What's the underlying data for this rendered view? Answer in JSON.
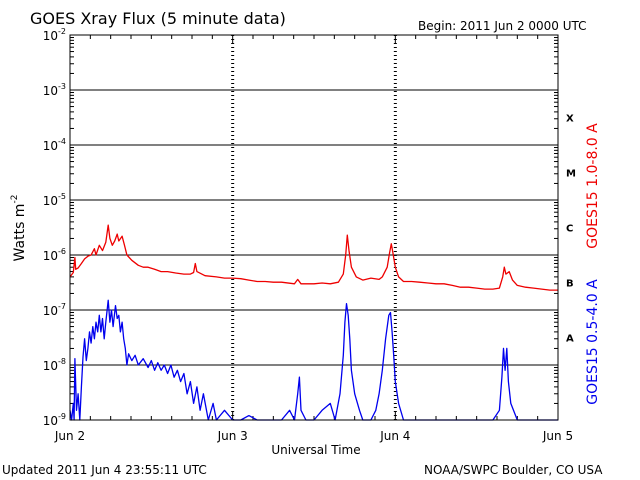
{
  "header": {
    "title": "GOES Xray Flux (5 minute data)",
    "begin": "Begin:  2011 Jun 2 0000 UTC"
  },
  "footer": {
    "updated": "Updated 2011 Jun  4 23:55:11 UTC",
    "credit": "NOAA/SWPC Boulder, CO USA"
  },
  "colors": {
    "long": "#ee0000",
    "short": "#0000ee",
    "grid": "#000000"
  },
  "chart_data": {
    "type": "line",
    "title": "GOES Xray Flux (5 minute data)",
    "xlabel": "Universal Time",
    "ylabel": "Watts m",
    "ylabel_sup": "-2",
    "y_scale": "log",
    "y_min_exp": -9,
    "y_max_exp": -2,
    "y_ticks": [
      {
        "base": "10",
        "exp": "-9"
      },
      {
        "base": "10",
        "exp": "-8"
      },
      {
        "base": "10",
        "exp": "-7"
      },
      {
        "base": "10",
        "exp": "-6"
      },
      {
        "base": "10",
        "exp": "-5"
      },
      {
        "base": "10",
        "exp": "-4"
      },
      {
        "base": "10",
        "exp": "-3"
      },
      {
        "base": "10",
        "exp": "-2"
      }
    ],
    "x_range_days": [
      0,
      3
    ],
    "x_ticks": [
      {
        "day": 0,
        "label": "Jun 2"
      },
      {
        "day": 1,
        "label": "Jun 3"
      },
      {
        "day": 2,
        "label": "Jun 4"
      },
      {
        "day": 3,
        "label": "Jun 5"
      }
    ],
    "flare_classes": [
      {
        "label": "X",
        "exp": -4
      },
      {
        "label": "M",
        "exp": -5
      },
      {
        "label": "C",
        "exp": -6
      },
      {
        "label": "B",
        "exp": -7
      },
      {
        "label": "A",
        "exp": -8
      }
    ],
    "series": [
      {
        "name": "GOES15 1.0-8.0 A",
        "color": "#ee0000",
        "points": [
          [
            0.0,
            4e-07
          ],
          [
            0.02,
            4.8e-07
          ],
          [
            0.03,
            9e-07
          ],
          [
            0.035,
            5.5e-07
          ],
          [
            0.05,
            5.8e-07
          ],
          [
            0.07,
            7e-07
          ],
          [
            0.09,
            8.5e-07
          ],
          [
            0.11,
            9.5e-07
          ],
          [
            0.13,
            1e-06
          ],
          [
            0.15,
            1.3e-06
          ],
          [
            0.16,
            1e-06
          ],
          [
            0.18,
            1.5e-06
          ],
          [
            0.2,
            1.2e-06
          ],
          [
            0.22,
            1.7e-06
          ],
          [
            0.235,
            3.5e-06
          ],
          [
            0.245,
            2e-06
          ],
          [
            0.26,
            1.5e-06
          ],
          [
            0.275,
            1.8e-06
          ],
          [
            0.29,
            2.4e-06
          ],
          [
            0.3,
            1.8e-06
          ],
          [
            0.32,
            2.2e-06
          ],
          [
            0.335,
            1.5e-06
          ],
          [
            0.35,
            1e-06
          ],
          [
            0.38,
            8e-07
          ],
          [
            0.42,
            6.5e-07
          ],
          [
            0.45,
            6e-07
          ],
          [
            0.48,
            6e-07
          ],
          [
            0.52,
            5.5e-07
          ],
          [
            0.56,
            5e-07
          ],
          [
            0.6,
            5e-07
          ],
          [
            0.65,
            4.7e-07
          ],
          [
            0.7,
            4.5e-07
          ],
          [
            0.74,
            4.5e-07
          ],
          [
            0.76,
            4.8e-07
          ],
          [
            0.77,
            7e-07
          ],
          [
            0.78,
            5e-07
          ],
          [
            0.83,
            4.2e-07
          ],
          [
            0.9,
            4e-07
          ],
          [
            0.95,
            3.8e-07
          ],
          [
            1.0,
            3.8e-07
          ],
          [
            1.05,
            3.7e-07
          ],
          [
            1.1,
            3.5e-07
          ],
          [
            1.15,
            3.3e-07
          ],
          [
            1.2,
            3.3e-07
          ],
          [
            1.25,
            3.2e-07
          ],
          [
            1.3,
            3.2e-07
          ],
          [
            1.38,
            3e-07
          ],
          [
            1.4,
            3.6e-07
          ],
          [
            1.42,
            3e-07
          ],
          [
            1.5,
            3e-07
          ],
          [
            1.55,
            3.1e-07
          ],
          [
            1.6,
            3e-07
          ],
          [
            1.65,
            3.2e-07
          ],
          [
            1.68,
            4.5e-07
          ],
          [
            1.695,
            1e-06
          ],
          [
            1.705,
            2.3e-06
          ],
          [
            1.715,
            1.2e-06
          ],
          [
            1.73,
            6e-07
          ],
          [
            1.76,
            4e-07
          ],
          [
            1.8,
            3.5e-07
          ],
          [
            1.85,
            3.8e-07
          ],
          [
            1.9,
            3.6e-07
          ],
          [
            1.92,
            4e-07
          ],
          [
            1.95,
            6e-07
          ],
          [
            1.965,
            1.1e-06
          ],
          [
            1.975,
            1.6e-06
          ],
          [
            1.985,
            1.1e-06
          ],
          [
            2.0,
            6e-07
          ],
          [
            2.02,
            4e-07
          ],
          [
            2.05,
            3.3e-07
          ],
          [
            2.1,
            3.3e-07
          ],
          [
            2.15,
            3.2e-07
          ],
          [
            2.2,
            3.1e-07
          ],
          [
            2.25,
            3e-07
          ],
          [
            2.3,
            3e-07
          ],
          [
            2.35,
            2.8e-07
          ],
          [
            2.4,
            2.6e-07
          ],
          [
            2.45,
            2.6e-07
          ],
          [
            2.5,
            2.5e-07
          ],
          [
            2.55,
            2.4e-07
          ],
          [
            2.6,
            2.4e-07
          ],
          [
            2.64,
            2.5e-07
          ],
          [
            2.66,
            4e-07
          ],
          [
            2.67,
            6e-07
          ],
          [
            2.68,
            4.5e-07
          ],
          [
            2.7,
            5e-07
          ],
          [
            2.72,
            3.5e-07
          ],
          [
            2.75,
            2.8e-07
          ],
          [
            2.8,
            2.6e-07
          ],
          [
            2.85,
            2.5e-07
          ],
          [
            2.9,
            2.4e-07
          ],
          [
            2.95,
            2.3e-07
          ],
          [
            3.0,
            2.3e-07
          ]
        ]
      },
      {
        "name": "GOES15 0.5-4.0 A",
        "color": "#0000ee",
        "points": [
          [
            0.0,
            1.5e-09
          ],
          [
            0.01,
            1e-09
          ],
          [
            0.02,
            2e-09
          ],
          [
            0.025,
            1e-09
          ],
          [
            0.03,
            1.3e-08
          ],
          [
            0.04,
            1.5e-09
          ],
          [
            0.05,
            3e-09
          ],
          [
            0.06,
            1e-09
          ],
          [
            0.07,
            4e-09
          ],
          [
            0.08,
            1.4e-08
          ],
          [
            0.09,
            3e-08
          ],
          [
            0.1,
            1.2e-08
          ],
          [
            0.11,
            2e-08
          ],
          [
            0.12,
            4e-08
          ],
          [
            0.13,
            2.5e-08
          ],
          [
            0.14,
            5e-08
          ],
          [
            0.15,
            3e-08
          ],
          [
            0.16,
            6e-08
          ],
          [
            0.17,
            4e-08
          ],
          [
            0.18,
            8e-08
          ],
          [
            0.19,
            4e-08
          ],
          [
            0.2,
            7e-08
          ],
          [
            0.21,
            3e-08
          ],
          [
            0.22,
            6e-08
          ],
          [
            0.235,
            1.5e-07
          ],
          [
            0.245,
            6e-08
          ],
          [
            0.255,
            1e-07
          ],
          [
            0.265,
            5e-08
          ],
          [
            0.28,
            1.2e-07
          ],
          [
            0.29,
            7e-08
          ],
          [
            0.3,
            8e-08
          ],
          [
            0.31,
            4e-08
          ],
          [
            0.32,
            6e-08
          ],
          [
            0.33,
            3e-08
          ],
          [
            0.34,
            2e-08
          ],
          [
            0.35,
            1e-08
          ],
          [
            0.36,
            1.6e-08
          ],
          [
            0.38,
            1.2e-08
          ],
          [
            0.4,
            1.5e-08
          ],
          [
            0.42,
            1e-08
          ],
          [
            0.45,
            1.3e-08
          ],
          [
            0.48,
            9e-09
          ],
          [
            0.5,
            1.2e-08
          ],
          [
            0.52,
            8e-09
          ],
          [
            0.54,
            1.1e-08
          ],
          [
            0.56,
            8e-09
          ],
          [
            0.58,
            1e-08
          ],
          [
            0.6,
            7e-09
          ],
          [
            0.62,
            1e-08
          ],
          [
            0.64,
            6e-09
          ],
          [
            0.66,
            8e-09
          ],
          [
            0.68,
            5e-09
          ],
          [
            0.7,
            7e-09
          ],
          [
            0.72,
            3e-09
          ],
          [
            0.74,
            5e-09
          ],
          [
            0.76,
            2e-09
          ],
          [
            0.78,
            4e-09
          ],
          [
            0.8,
            1.5e-09
          ],
          [
            0.82,
            3e-09
          ],
          [
            0.85,
            1e-09
          ],
          [
            0.88,
            2e-09
          ],
          [
            0.9,
            1e-09
          ],
          [
            0.95,
            1.5e-09
          ],
          [
            1.0,
            1e-09
          ],
          [
            1.05,
            1e-09
          ],
          [
            1.1,
            1.2e-09
          ],
          [
            1.15,
            1e-09
          ],
          [
            1.2,
            1e-09
          ],
          [
            1.25,
            1e-09
          ],
          [
            1.3,
            1e-09
          ],
          [
            1.35,
            1.5e-09
          ],
          [
            1.38,
            1e-09
          ],
          [
            1.4,
            3e-09
          ],
          [
            1.41,
            6e-09
          ],
          [
            1.42,
            1.5e-09
          ],
          [
            1.45,
            1e-09
          ],
          [
            1.5,
            1e-09
          ],
          [
            1.55,
            1.5e-09
          ],
          [
            1.6,
            2e-09
          ],
          [
            1.63,
            1e-09
          ],
          [
            1.66,
            3e-09
          ],
          [
            1.68,
            1.5e-08
          ],
          [
            1.69,
            6e-08
          ],
          [
            1.7,
            1.3e-07
          ],
          [
            1.71,
            8e-08
          ],
          [
            1.72,
            3e-08
          ],
          [
            1.73,
            8e-09
          ],
          [
            1.75,
            3e-09
          ],
          [
            1.78,
            1.5e-09
          ],
          [
            1.8,
            1e-09
          ],
          [
            1.85,
            1e-09
          ],
          [
            1.88,
            1.5e-09
          ],
          [
            1.9,
            3e-09
          ],
          [
            1.92,
            8e-09
          ],
          [
            1.94,
            3e-08
          ],
          [
            1.96,
            8e-08
          ],
          [
            1.97,
            9e-08
          ],
          [
            1.98,
            4e-08
          ],
          [
            1.99,
            1.5e-08
          ],
          [
            2.0,
            5e-09
          ],
          [
            2.02,
            2e-09
          ],
          [
            2.05,
            1e-09
          ],
          [
            2.1,
            1e-09
          ],
          [
            2.2,
            1e-09
          ],
          [
            2.3,
            1e-09
          ],
          [
            2.4,
            1e-09
          ],
          [
            2.5,
            1e-09
          ],
          [
            2.6,
            1e-09
          ],
          [
            2.64,
            1.5e-09
          ],
          [
            2.655,
            6e-09
          ],
          [
            2.665,
            2e-08
          ],
          [
            2.675,
            8e-09
          ],
          [
            2.685,
            2e-08
          ],
          [
            2.695,
            5e-09
          ],
          [
            2.71,
            2e-09
          ],
          [
            2.75,
            1e-09
          ],
          [
            2.8,
            1e-09
          ],
          [
            2.9,
            1e-09
          ],
          [
            3.0,
            1e-09
          ]
        ]
      }
    ]
  }
}
